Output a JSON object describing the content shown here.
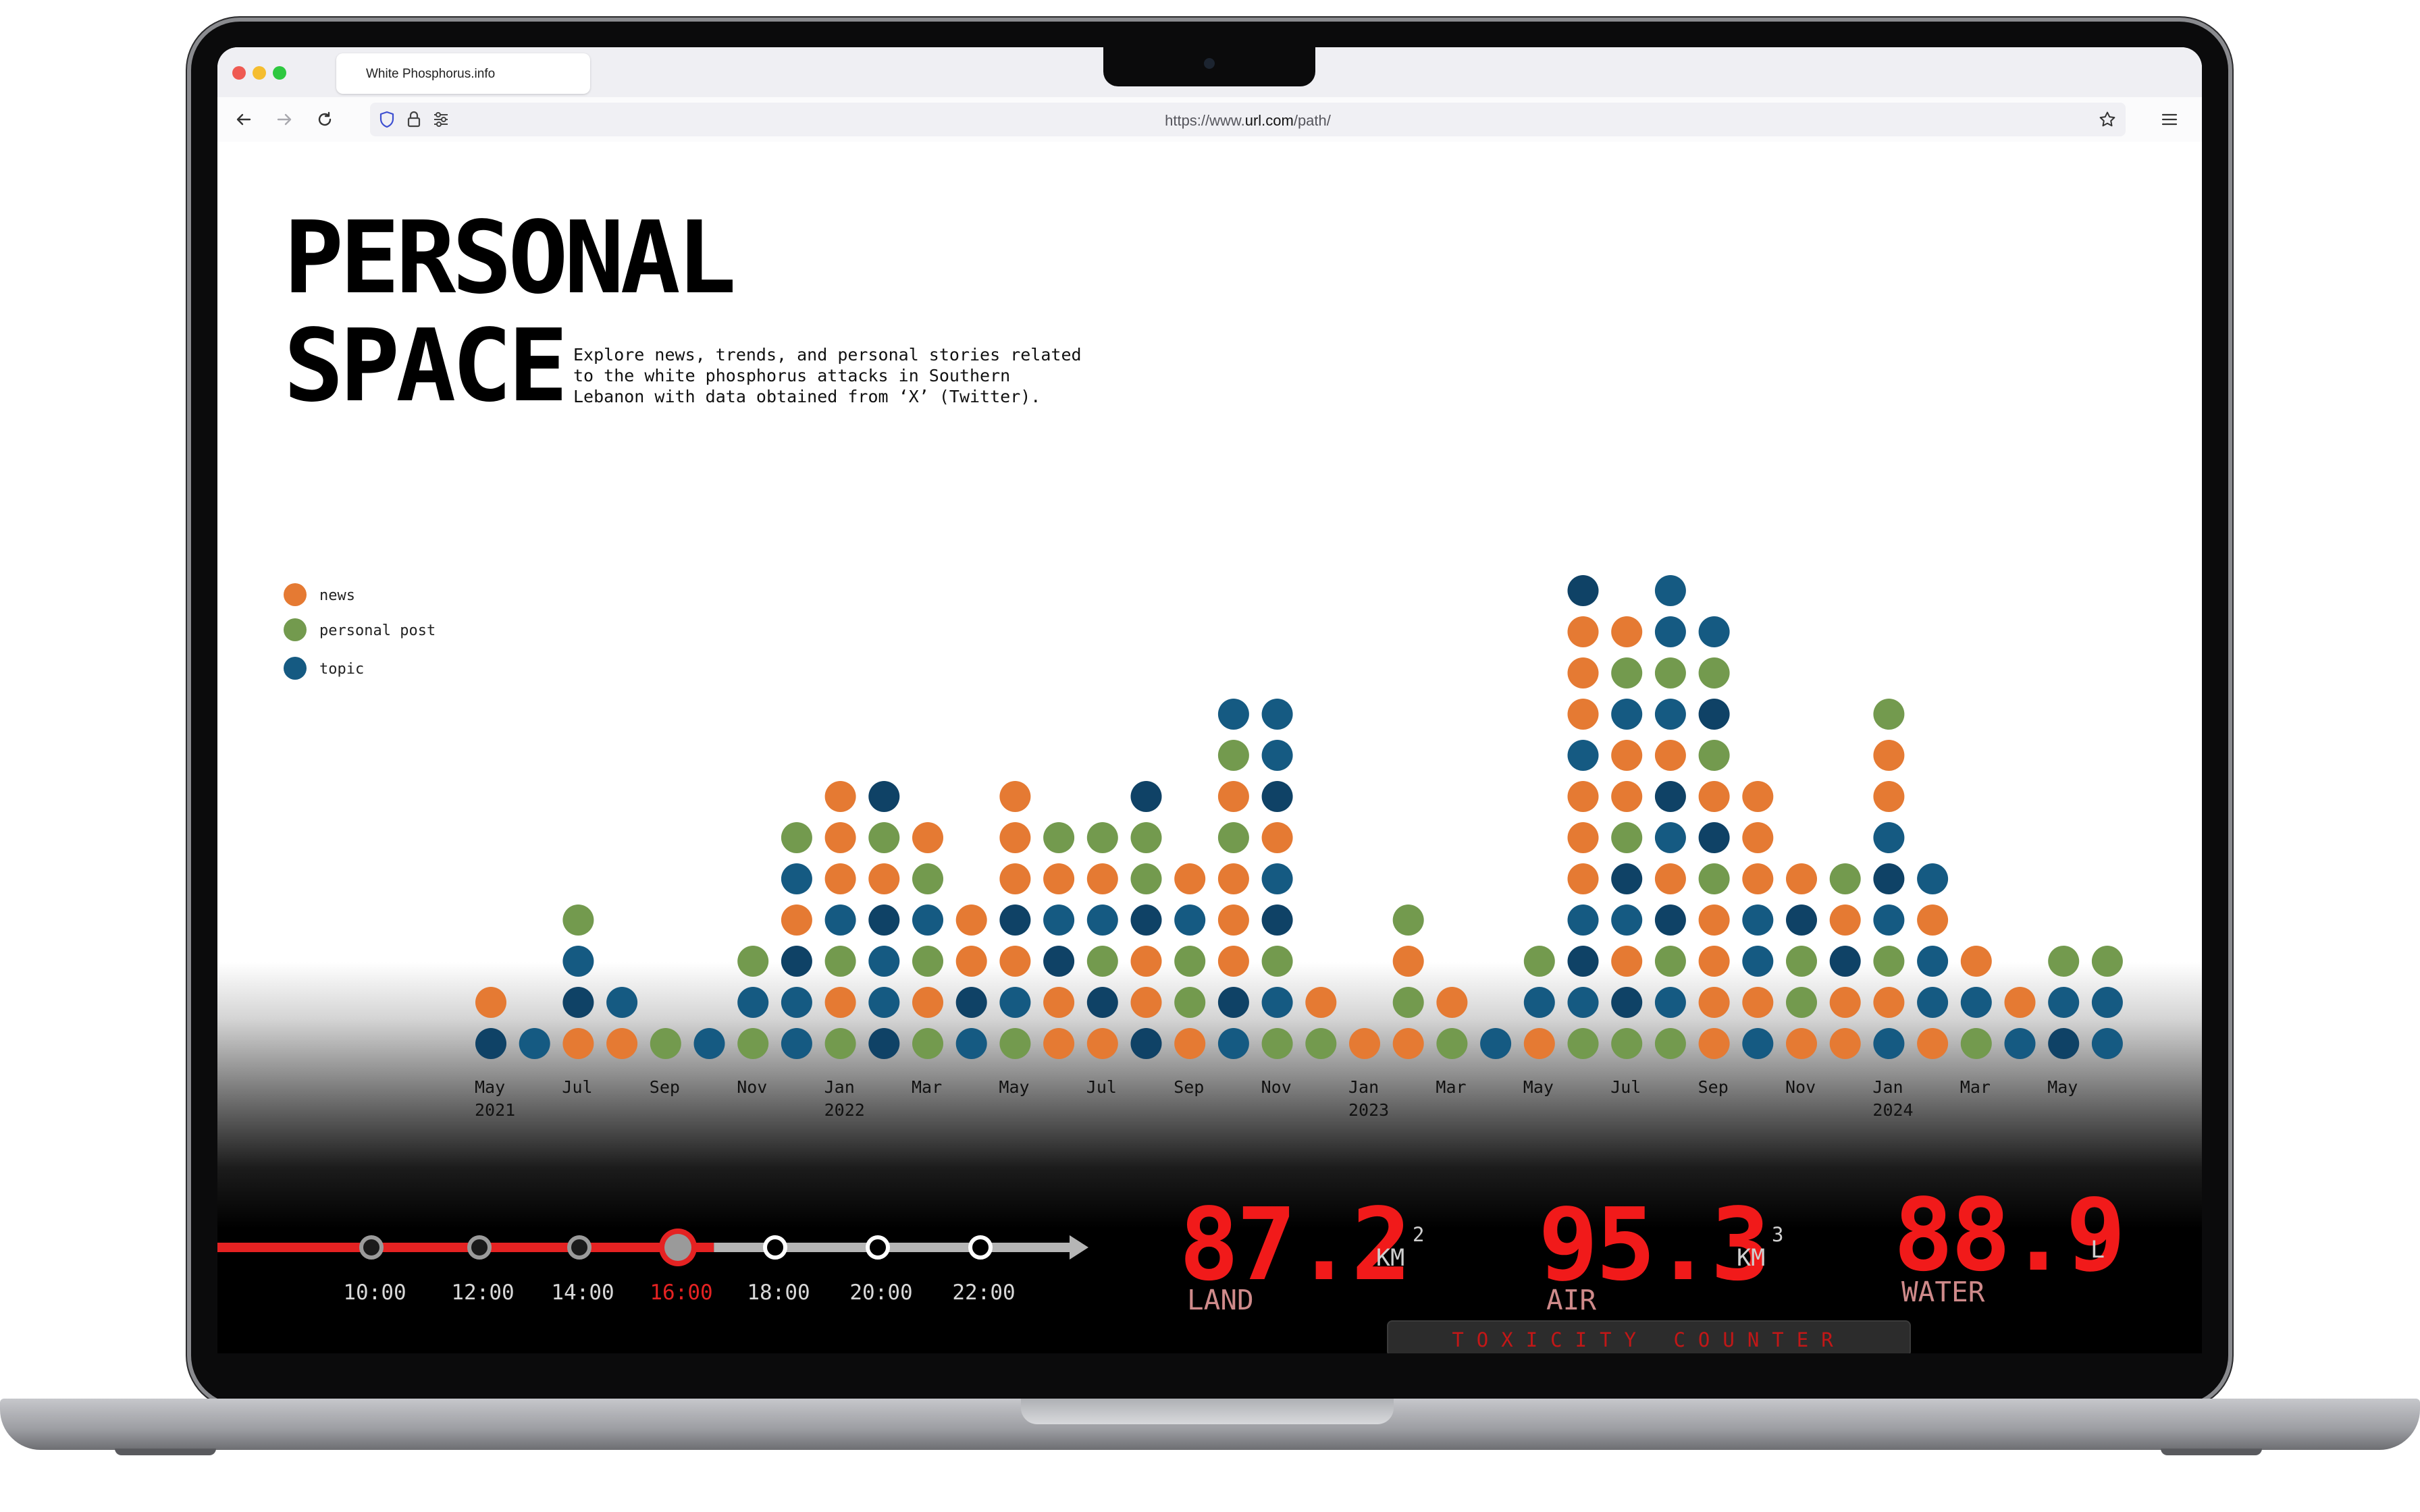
{
  "browser": {
    "tab_title": "White Phosphorus.info",
    "url_prefix": "https://www.",
    "url_host": "url.com",
    "url_path": "/path/"
  },
  "page": {
    "title_line1": "PERSONAL",
    "title_line2": "SPACE",
    "intro_line1": "Explore news, trends, and personal stories related",
    "intro_line2": "to the white phosphorus attacks in Southern",
    "intro_line3": "Lebanon with data obtained from ‘X’ (Twitter).",
    "legend": [
      {
        "label": "news",
        "color": "#e57a33"
      },
      {
        "label": "personal post",
        "color": "#739a4e"
      },
      {
        "label": "topic",
        "color": "#155a82"
      }
    ]
  },
  "chart_data": {
    "type": "dot-stack",
    "colors": {
      "news": "#e57a33",
      "personal post": "#739a4e",
      "topic": "#155a82",
      "topic_dark": "#0f4266"
    },
    "months": [
      {
        "label": "May",
        "year": "2021",
        "dots": [
          "topic",
          "news"
        ]
      },
      {
        "label": "",
        "dots": [
          "topic"
        ]
      },
      {
        "label": "Jul",
        "dots": [
          "news",
          "topic",
          "topic",
          "personal post"
        ]
      },
      {
        "label": "",
        "dots": [
          "news",
          "topic"
        ]
      },
      {
        "label": "Sep",
        "dots": [
          "personal post"
        ]
      },
      {
        "label": "",
        "dots": [
          "topic"
        ]
      },
      {
        "label": "Nov",
        "dots": [
          "personal post",
          "topic",
          "personal post"
        ]
      },
      {
        "label": "",
        "dots": [
          "topic",
          "topic",
          "topic",
          "news",
          "topic",
          "personal post"
        ]
      },
      {
        "label": "Jan",
        "year": "2022",
        "dots": [
          "personal post",
          "news",
          "personal post",
          "topic",
          "news",
          "news",
          "news"
        ]
      },
      {
        "label": "",
        "dots": [
          "topic",
          "topic",
          "topic",
          "topic",
          "news",
          "personal post",
          "topic"
        ]
      },
      {
        "label": "Mar",
        "dots": [
          "personal post",
          "news",
          "personal post",
          "topic",
          "personal post",
          "news"
        ]
      },
      {
        "label": "",
        "dots": [
          "topic",
          "topic",
          "news",
          "news"
        ]
      },
      {
        "label": "May",
        "dots": [
          "personal post",
          "topic",
          "news",
          "topic",
          "news",
          "news",
          "news"
        ]
      },
      {
        "label": "",
        "dots": [
          "news",
          "news",
          "topic",
          "topic",
          "news",
          "personal post"
        ]
      },
      {
        "label": "Jul",
        "dots": [
          "news",
          "topic",
          "personal post",
          "topic",
          "news",
          "personal post"
        ]
      },
      {
        "label": "",
        "dots": [
          "topic",
          "news",
          "news",
          "topic",
          "personal post",
          "personal post",
          "topic"
        ]
      },
      {
        "label": "Sep",
        "dots": [
          "news",
          "personal post",
          "personal post",
          "topic",
          "news"
        ]
      },
      {
        "label": "",
        "dots": [
          "topic",
          "topic",
          "news",
          "news",
          "news",
          "personal post",
          "news",
          "personal post",
          "topic"
        ]
      },
      {
        "label": "Nov",
        "dots": [
          "personal post",
          "topic",
          "personal post",
          "topic",
          "topic",
          "news",
          "topic",
          "topic",
          "topic"
        ]
      },
      {
        "label": "",
        "dots": [
          "personal post",
          "news"
        ]
      },
      {
        "label": "Jan",
        "year": "2023",
        "dots": [
          "news"
        ]
      },
      {
        "label": "",
        "dots": [
          "news",
          "personal post",
          "news",
          "personal post"
        ]
      },
      {
        "label": "Mar",
        "dots": [
          "personal post",
          "news"
        ]
      },
      {
        "label": "",
        "dots": [
          "topic"
        ]
      },
      {
        "label": "May",
        "dots": [
          "news",
          "topic",
          "personal post"
        ]
      },
      {
        "label": "",
        "dots": [
          "personal post",
          "topic",
          "topic",
          "topic",
          "news",
          "news",
          "news",
          "topic",
          "news",
          "news",
          "news",
          "topic"
        ]
      },
      {
        "label": "Jul",
        "dots": [
          "personal post",
          "topic",
          "news",
          "topic",
          "topic",
          "personal post",
          "news",
          "news",
          "topic",
          "personal post",
          "news"
        ]
      },
      {
        "label": "",
        "dots": [
          "personal post",
          "topic",
          "personal post",
          "topic",
          "news",
          "topic",
          "topic",
          "news",
          "topic",
          "personal post",
          "topic",
          "topic"
        ]
      },
      {
        "label": "Sep",
        "dots": [
          "news",
          "news",
          "news",
          "news",
          "personal post",
          "topic",
          "news",
          "personal post",
          "topic",
          "personal post",
          "topic"
        ]
      },
      {
        "label": "",
        "dots": [
          "topic",
          "news",
          "topic",
          "topic",
          "news",
          "news",
          "news"
        ]
      },
      {
        "label": "Nov",
        "dots": [
          "news",
          "personal post",
          "personal post",
          "topic",
          "news"
        ]
      },
      {
        "label": "",
        "dots": [
          "news",
          "news",
          "topic",
          "news",
          "personal post"
        ]
      },
      {
        "label": "Jan",
        "year": "2024",
        "dots": [
          "topic",
          "news",
          "personal post",
          "topic",
          "topic",
          "topic",
          "news",
          "news",
          "personal post"
        ]
      },
      {
        "label": "",
        "dots": [
          "news",
          "topic",
          "topic",
          "news",
          "topic"
        ]
      },
      {
        "label": "Mar",
        "dots": [
          "personal post",
          "topic",
          "news"
        ]
      },
      {
        "label": "",
        "dots": [
          "topic",
          "news"
        ]
      },
      {
        "label": "May",
        "dots": [
          "topic",
          "topic",
          "personal post"
        ]
      },
      {
        "label": "",
        "dots": [
          "topic",
          "topic",
          "personal post"
        ]
      }
    ]
  },
  "timeline": {
    "track_color": "#e52222",
    "rest_color": "#b5b5b5",
    "times": [
      "10:00",
      "12:00",
      "14:00",
      "16:00",
      "18:00",
      "20:00",
      "22:00"
    ],
    "current_index": 3,
    "progress": 0.57
  },
  "counters": [
    {
      "value": "87.2",
      "unit": "KM",
      "power": "2",
      "label": "LAND"
    },
    {
      "value": "95.3",
      "unit": "KM",
      "power": "3",
      "label": "AIR"
    },
    {
      "value": "88.9",
      "unit": "L",
      "power": "",
      "label": "WATER"
    }
  ],
  "toxicity_label": "TOXICITY COUNTER"
}
